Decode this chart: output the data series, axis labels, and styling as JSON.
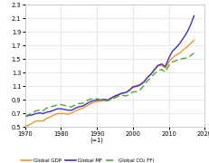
{
  "years": [
    1970,
    1971,
    1972,
    1973,
    1974,
    1975,
    1976,
    1977,
    1978,
    1979,
    1980,
    1981,
    1982,
    1983,
    1984,
    1985,
    1986,
    1987,
    1988,
    1989,
    1990,
    1991,
    1992,
    1993,
    1994,
    1995,
    1996,
    1997,
    1998,
    1999,
    2000,
    2001,
    2002,
    2003,
    2004,
    2005,
    2006,
    2007,
    2008,
    2009,
    2010,
    2011,
    2012,
    2013,
    2014,
    2015,
    2016,
    2017
  ],
  "gdp": [
    0.51,
    0.53,
    0.56,
    0.59,
    0.59,
    0.59,
    0.63,
    0.65,
    0.68,
    0.7,
    0.7,
    0.7,
    0.69,
    0.71,
    0.74,
    0.76,
    0.78,
    0.81,
    0.84,
    0.86,
    0.88,
    0.88,
    0.89,
    0.89,
    0.92,
    0.95,
    0.97,
    1.0,
    1.01,
    1.05,
    1.1,
    1.11,
    1.13,
    1.17,
    1.23,
    1.28,
    1.34,
    1.4,
    1.41,
    1.37,
    1.46,
    1.52,
    1.56,
    1.59,
    1.64,
    1.68,
    1.73,
    1.78
  ],
  "mf": [
    0.66,
    0.67,
    0.68,
    0.7,
    0.71,
    0.7,
    0.72,
    0.73,
    0.75,
    0.77,
    0.77,
    0.76,
    0.75,
    0.75,
    0.78,
    0.8,
    0.81,
    0.84,
    0.87,
    0.89,
    0.9,
    0.9,
    0.91,
    0.9,
    0.93,
    0.96,
    0.98,
    1.0,
    1.01,
    1.04,
    1.09,
    1.1,
    1.12,
    1.16,
    1.23,
    1.28,
    1.35,
    1.41,
    1.43,
    1.39,
    1.52,
    1.62,
    1.67,
    1.73,
    1.81,
    1.89,
    2.0,
    2.14
  ],
  "co2": [
    0.67,
    0.68,
    0.71,
    0.74,
    0.75,
    0.74,
    0.78,
    0.8,
    0.81,
    0.83,
    0.83,
    0.82,
    0.8,
    0.8,
    0.83,
    0.85,
    0.85,
    0.88,
    0.91,
    0.92,
    0.92,
    0.9,
    0.89,
    0.89,
    0.91,
    0.93,
    0.96,
    0.97,
    0.96,
    0.98,
    1.02,
    1.02,
    1.05,
    1.11,
    1.18,
    1.23,
    1.29,
    1.33,
    1.35,
    1.31,
    1.41,
    1.46,
    1.48,
    1.5,
    1.51,
    1.52,
    1.55,
    1.59
  ],
  "gdp_color": "#f4952a",
  "mf_color": "#3b2fc9",
  "co2_color": "#4aaa30",
  "xlim": [
    1970,
    2020
  ],
  "ylim": [
    0.5,
    2.3
  ],
  "yticks": [
    0.5,
    0.7,
    0.9,
    1.1,
    1.3,
    1.5,
    1.7,
    1.9,
    2.1,
    2.3
  ],
  "xticks": [
    1970,
    1980,
    1990,
    2000,
    2010,
    2020
  ],
  "legend_gdp": "Global GDP",
  "legend_mf": "Global MF",
  "legend_co2": "Global CO₂ FFI",
  "background_color": "#ffffff",
  "grid_color": "#e0e0e0"
}
